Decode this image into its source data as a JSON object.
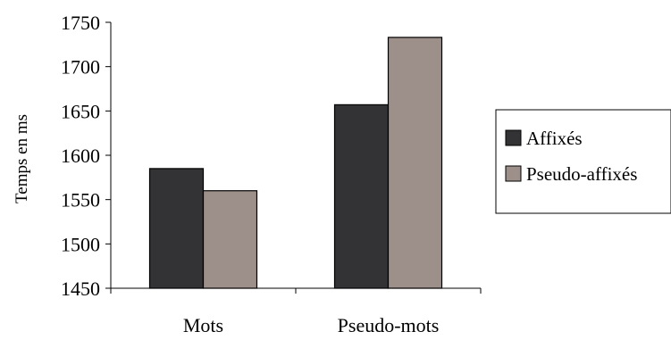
{
  "chart_data": {
    "type": "bar",
    "title": "",
    "xlabel": "",
    "ylabel": "Temps en ms",
    "ylim": [
      1450,
      1750
    ],
    "yticks": [
      1450,
      1500,
      1550,
      1600,
      1650,
      1700,
      1750
    ],
    "categories": [
      "Mots",
      "Pseudo-mots"
    ],
    "series": [
      {
        "name": "Affixés",
        "values": [
          1585,
          1657
        ],
        "color": "#333336"
      },
      {
        "name": "Pseudo-affixés",
        "values": [
          1560,
          1733
        ],
        "color": "#9d8f89"
      }
    ],
    "grid": false,
    "legend_position": "right"
  }
}
